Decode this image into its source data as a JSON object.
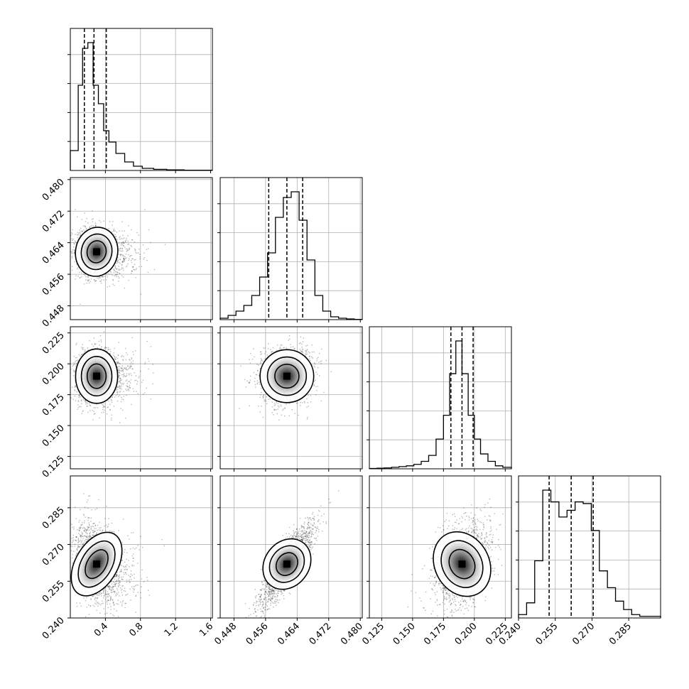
{
  "chart_data": {
    "type": "corner",
    "grid": true,
    "parameters": [
      {
        "ticks": [
          0.4,
          0.8,
          1.2,
          1.6
        ],
        "tick_labels": [
          "0.4",
          "0.8",
          "1.2",
          "1.6"
        ],
        "range": [
          0.0,
          1.62
        ]
      },
      {
        "ticks": [
          0.448,
          0.456,
          0.464,
          0.472,
          0.48
        ],
        "tick_labels": [
          "0.448",
          "0.456",
          "0.464",
          "0.472",
          "0.480"
        ],
        "range": [
          0.4445,
          0.4805
        ]
      },
      {
        "ticks": [
          0.125,
          0.15,
          0.175,
          0.2,
          0.225
        ],
        "tick_labels": [
          "0.125",
          "0.150",
          "0.175",
          "0.200",
          "0.225"
        ],
        "range": [
          0.115,
          0.23
        ]
      },
      {
        "ticks": [
          0.24,
          0.255,
          0.27,
          0.285
        ],
        "tick_labels": [
          "0.240",
          "0.255",
          "0.270",
          "0.285"
        ],
        "range": [
          0.24,
          0.298
        ]
      }
    ],
    "quantiles": [
      [
        0.16,
        0.27,
        0.41
      ],
      [
        0.4568,
        0.4614,
        0.4654
      ],
      [
        0.181,
        0.19,
        0.199
      ],
      [
        0.2525,
        0.2615,
        0.2705
      ]
    ],
    "histograms": [
      {
        "edges": [
          0.0,
          0.09,
          0.14,
          0.2,
          0.26,
          0.32,
          0.38,
          0.44,
          0.52,
          0.62,
          0.72,
          0.82,
          0.95,
          1.1,
          1.3,
          1.62
        ],
        "counts": [
          0.14,
          0.6,
          0.86,
          0.9,
          0.6,
          0.47,
          0.28,
          0.2,
          0.12,
          0.06,
          0.03,
          0.015,
          0.008,
          0.004,
          0.002
        ]
      },
      {
        "edges": [
          0.4445,
          0.4465,
          0.4485,
          0.4505,
          0.4525,
          0.4545,
          0.4565,
          0.4585,
          0.4605,
          0.4625,
          0.4645,
          0.4665,
          0.4685,
          0.4705,
          0.4725,
          0.4745,
          0.4765,
          0.4785,
          0.4805
        ],
        "counts": [
          0.01,
          0.03,
          0.06,
          0.1,
          0.17,
          0.3,
          0.47,
          0.72,
          0.86,
          0.9,
          0.7,
          0.42,
          0.17,
          0.06,
          0.02,
          0.01,
          0.005,
          0.002
        ]
      },
      {
        "edges": [
          0.115,
          0.121,
          0.127,
          0.133,
          0.139,
          0.145,
          0.151,
          0.157,
          0.163,
          0.169,
          0.175,
          0.18,
          0.185,
          0.19,
          0.195,
          0.2,
          0.205,
          0.211,
          0.217,
          0.223,
          0.23
        ],
        "counts": [
          0.002,
          0.004,
          0.006,
          0.01,
          0.015,
          0.02,
          0.03,
          0.05,
          0.09,
          0.2,
          0.36,
          0.64,
          0.86,
          0.64,
          0.36,
          0.2,
          0.1,
          0.05,
          0.02,
          0.01
        ]
      },
      {
        "edges": [
          0.24,
          0.2433,
          0.2466,
          0.2499,
          0.2532,
          0.2565,
          0.2598,
          0.2631,
          0.2664,
          0.2697,
          0.273,
          0.2763,
          0.2796,
          0.2829,
          0.2862,
          0.2895,
          0.298
        ],
        "counts": [
          0.02,
          0.09,
          0.34,
          0.76,
          0.69,
          0.6,
          0.64,
          0.69,
          0.68,
          0.52,
          0.28,
          0.18,
          0.1,
          0.05,
          0.02,
          0.01
        ]
      }
    ],
    "pairs": [
      {
        "x": 0,
        "y": 1,
        "mean": [
          0.3,
          0.4617
        ],
        "sd": [
          0.12,
          0.0034
        ],
        "rho": -0.15,
        "skew_x": 0.8
      },
      {
        "x": 0,
        "y": 2,
        "mean": [
          0.3,
          0.19
        ],
        "sd": [
          0.12,
          0.011
        ],
        "rho": 0.0,
        "skew_x": 0.8
      },
      {
        "x": 1,
        "y": 2,
        "mean": [
          0.4614,
          0.19
        ],
        "sd": [
          0.0034,
          0.011
        ],
        "rho": 0.05,
        "skew_x": 0.0
      },
      {
        "x": 0,
        "y": 3,
        "mean": [
          0.3,
          0.262
        ],
        "sd": [
          0.12,
          0.0085
        ],
        "rho": -0.3,
        "skew_x": 0.8
      },
      {
        "x": 1,
        "y": 3,
        "mean": [
          0.4614,
          0.262
        ],
        "sd": [
          0.0034,
          0.0085
        ],
        "rho": 0.85,
        "skew_x": 0.0
      },
      {
        "x": 2,
        "y": 3,
        "mean": [
          0.19,
          0.262
        ],
        "sd": [
          0.011,
          0.0085
        ],
        "rho": 0.35,
        "skew_x": 0.0
      }
    ]
  }
}
